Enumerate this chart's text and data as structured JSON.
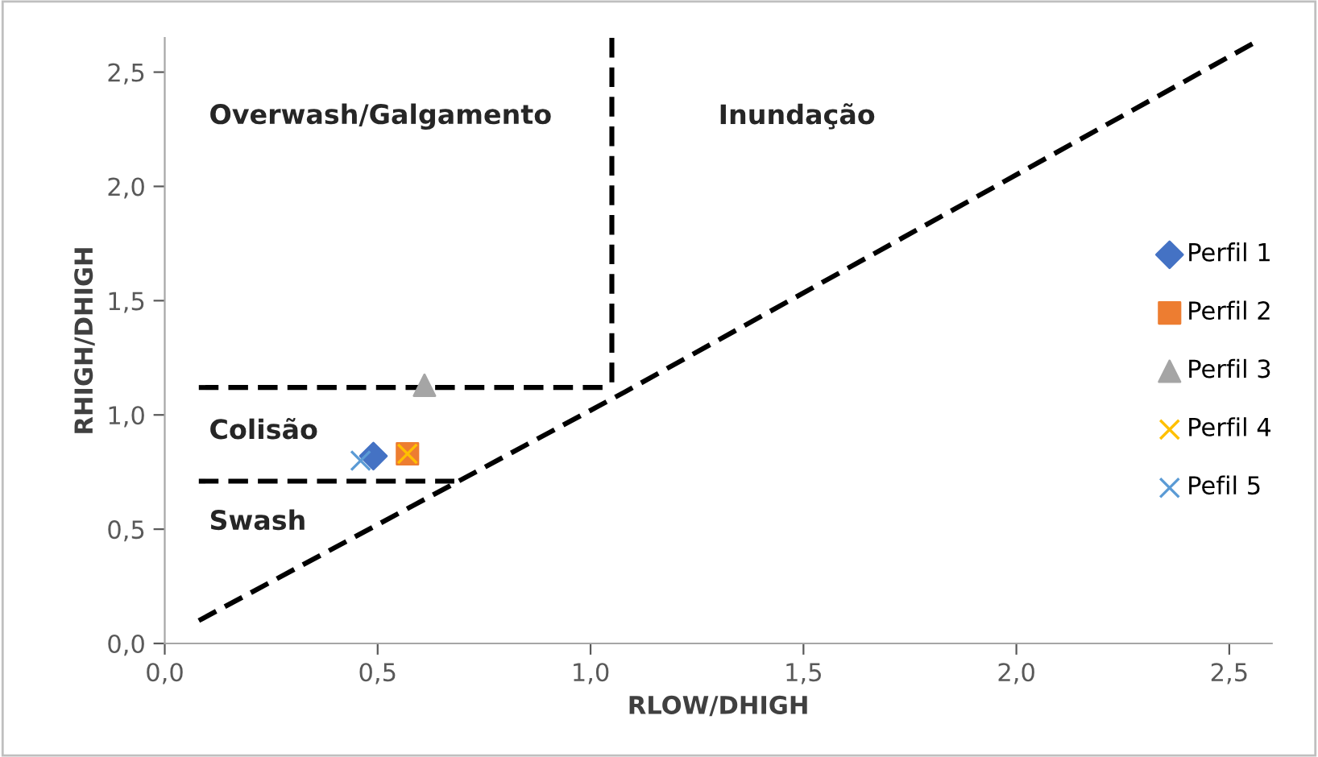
{
  "chart_data": {
    "type": "scatter",
    "xlabel": "RLOW/DHIGH",
    "ylabel": "RHIGH/DHIGH",
    "xlim": [
      0,
      2.6
    ],
    "ylim": [
      0,
      2.65
    ],
    "xticks": [
      {
        "value": 0,
        "label": "0,0"
      },
      {
        "value": 0.5,
        "label": "0,5"
      },
      {
        "value": 1.0,
        "label": "1,0"
      },
      {
        "value": 1.5,
        "label": "1,5"
      },
      {
        "value": 2.0,
        "label": "2,0"
      },
      {
        "value": 2.5,
        "label": "2,5"
      }
    ],
    "yticks": [
      {
        "value": 0,
        "label": "0,0"
      },
      {
        "value": 0.5,
        "label": "0,5"
      },
      {
        "value": 1.0,
        "label": "1,0"
      },
      {
        "value": 1.5,
        "label": "1,5"
      },
      {
        "value": 2.0,
        "label": "2,0"
      },
      {
        "value": 2.5,
        "label": "2,5"
      }
    ],
    "grid": false,
    "legend": "right",
    "series": [
      {
        "type": "line",
        "color": "#000000",
        "line_style": "dashed",
        "marker": "none",
        "x": [
          0.08,
          1.08,
          2.56
        ],
        "values": [
          0.1,
          1.1,
          2.63
        ]
      },
      {
        "type": "line",
        "color": "#000000",
        "line_style": "dashed",
        "marker": "none",
        "x": [
          1.05,
          1.05
        ],
        "values": [
          2.65,
          1.1
        ]
      },
      {
        "type": "line",
        "color": "#000000",
        "line_style": "dashed",
        "marker": "none",
        "x": [
          0.08,
          1.05
        ],
        "values": [
          1.12,
          1.12
        ]
      },
      {
        "type": "line",
        "color": "#000000",
        "line_style": "dashed",
        "marker": "none",
        "x": [
          0.08,
          0.68
        ],
        "values": [
          0.71,
          0.71
        ]
      },
      {
        "name": "Perfil 1",
        "color": "#4472c4",
        "marker": "diamond",
        "x": [
          0.49
        ],
        "values": [
          0.82
        ]
      },
      {
        "name": "Perfil 2",
        "color": "#ed7d31",
        "marker": "square",
        "x": [
          0.57
        ],
        "values": [
          0.83
        ]
      },
      {
        "name": "Perfil 3",
        "color": "#a5a5a5",
        "marker": "triangle",
        "x": [
          0.61
        ],
        "values": [
          1.13
        ]
      },
      {
        "name": "Perfil 4",
        "color": "#ffc000",
        "marker": "cross",
        "x": [
          0.57
        ],
        "values": [
          0.83
        ]
      },
      {
        "name": "Pefil 5",
        "color": "#5b9bd5",
        "marker": "cross",
        "x": [
          0.46
        ],
        "values": [
          0.8
        ]
      }
    ],
    "annotations": [
      "Overwash/Galgamento",
      "Inundação",
      "Colisão",
      "Swash"
    ]
  }
}
